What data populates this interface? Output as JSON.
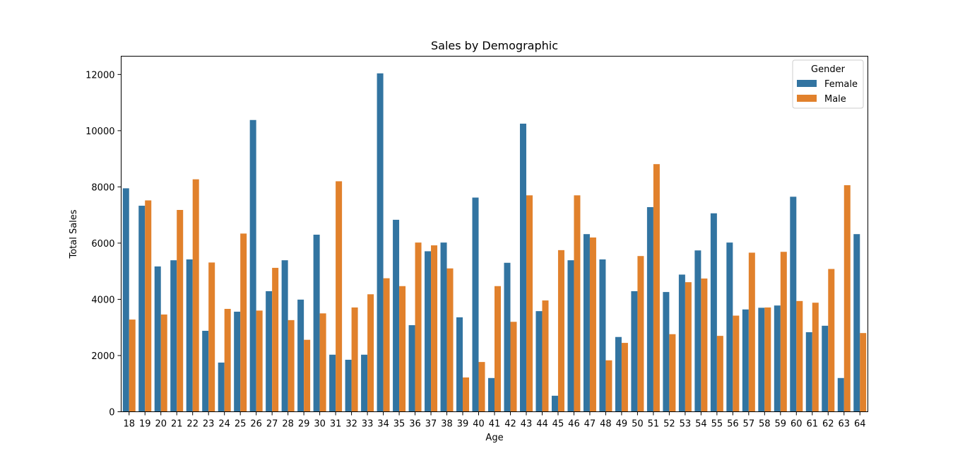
{
  "chart_data": {
    "type": "bar",
    "title": "Sales by Demographic",
    "xlabel": "Age",
    "ylabel": "Total Sales",
    "ylim": [
      0,
      12650
    ],
    "yticks": [
      0,
      2000,
      4000,
      6000,
      8000,
      10000,
      12000
    ],
    "grid": false,
    "legend_position": "top-right",
    "legend_title": "Gender",
    "categories": [
      "18",
      "19",
      "20",
      "21",
      "22",
      "23",
      "24",
      "25",
      "26",
      "27",
      "28",
      "29",
      "30",
      "31",
      "32",
      "33",
      "34",
      "35",
      "36",
      "37",
      "38",
      "39",
      "40",
      "41",
      "42",
      "43",
      "44",
      "45",
      "46",
      "47",
      "48",
      "49",
      "50",
      "51",
      "52",
      "53",
      "54",
      "55",
      "56",
      "57",
      "58",
      "59",
      "60",
      "61",
      "62",
      "63",
      "64"
    ],
    "series": [
      {
        "name": "Female",
        "color": "#3274a1",
        "values": [
          7950,
          7330,
          5170,
          5390,
          5420,
          2880,
          1750,
          3560,
          10380,
          4290,
          5390,
          3990,
          6300,
          2030,
          1850,
          2030,
          12040,
          6830,
          3080,
          5710,
          6020,
          3360,
          7620,
          1200,
          5300,
          10250,
          3580,
          570,
          5390,
          6320,
          5420,
          2660,
          4290,
          7280,
          4260,
          4880,
          5740,
          7060,
          6020,
          3640,
          3700,
          3780,
          7650,
          2830,
          3060,
          1200,
          6320
        ]
      },
      {
        "name": "Male",
        "color": "#e1812c",
        "values": [
          3280,
          7520,
          3460,
          7180,
          8270,
          5310,
          3660,
          6340,
          3600,
          5120,
          3260,
          2560,
          3500,
          8200,
          3710,
          4180,
          4750,
          4470,
          6020,
          5920,
          5100,
          1220,
          1770,
          4470,
          3200,
          7700,
          3960,
          5750,
          7700,
          6200,
          1830,
          2450,
          5540,
          8810,
          2760,
          4610,
          4740,
          2700,
          3420,
          5660,
          3710,
          5690,
          3940,
          3880,
          5080,
          8060,
          2800
        ]
      }
    ]
  }
}
